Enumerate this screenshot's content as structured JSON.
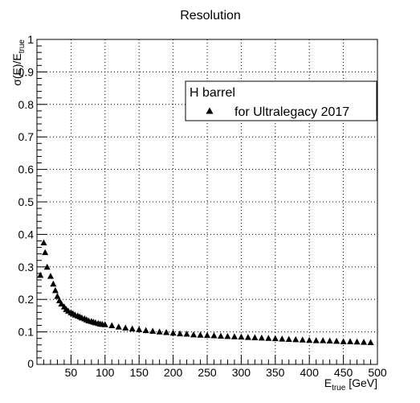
{
  "chart_data": {
    "type": "scatter",
    "title": "Resolution",
    "xlabel": {
      "main": "E",
      "sub": "true",
      "suffix": " [GeV]"
    },
    "ylabel": {
      "main": "σ(E)/E",
      "sub": "true"
    },
    "xlim": [
      0,
      500
    ],
    "ylim": [
      0,
      1
    ],
    "xticks": [
      50,
      100,
      150,
      200,
      250,
      300,
      350,
      400,
      450,
      500
    ],
    "yticks": [
      0.1,
      0.2,
      0.3,
      0.4,
      0.5,
      0.6,
      0.7,
      0.8,
      0.9,
      1
    ],
    "yorigin_label": "0",
    "grid": true,
    "legend": {
      "placement": "top-right",
      "header": "H barrel",
      "entry": "for Ultralegacy 2017"
    },
    "series": [
      {
        "marker": "triangle-up",
        "color": "#000000",
        "x": [
          5,
          10,
          12,
          15,
          20,
          24,
          27,
          30,
          33,
          36,
          40,
          43,
          46,
          50,
          53,
          56,
          60,
          63,
          66,
          70,
          73,
          76,
          80,
          83,
          86,
          90,
          93,
          96,
          100,
          110,
          120,
          130,
          140,
          150,
          160,
          170,
          180,
          190,
          200,
          210,
          220,
          230,
          240,
          250,
          260,
          270,
          280,
          290,
          300,
          310,
          320,
          330,
          340,
          350,
          360,
          370,
          380,
          390,
          400,
          410,
          420,
          430,
          440,
          450,
          460,
          470,
          480,
          490
        ],
        "y": [
          0.275,
          0.375,
          0.345,
          0.3,
          0.272,
          0.248,
          0.228,
          0.21,
          0.197,
          0.187,
          0.178,
          0.17,
          0.165,
          0.16,
          0.157,
          0.153,
          0.15,
          0.147,
          0.144,
          0.141,
          0.138,
          0.135,
          0.133,
          0.131,
          0.129,
          0.127,
          0.125,
          0.124,
          0.123,
          0.12,
          0.116,
          0.113,
          0.11,
          0.108,
          0.105,
          0.103,
          0.101,
          0.099,
          0.097,
          0.095,
          0.094,
          0.092,
          0.091,
          0.09,
          0.089,
          0.088,
          0.087,
          0.086,
          0.085,
          0.084,
          0.083,
          0.082,
          0.081,
          0.08,
          0.079,
          0.078,
          0.077,
          0.076,
          0.075,
          0.074,
          0.074,
          0.073,
          0.072,
          0.071,
          0.071,
          0.07,
          0.069,
          0.068
        ]
      }
    ]
  }
}
